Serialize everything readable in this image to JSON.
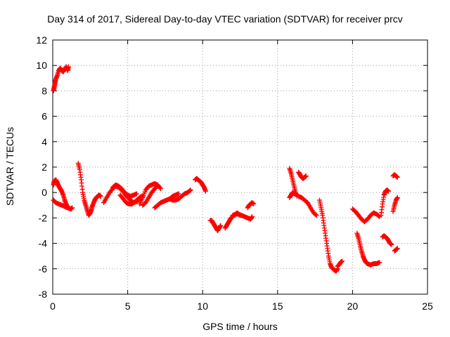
{
  "chart_data": {
    "type": "scatter",
    "title": "Day 314 of 2017, Sidereal Day-to-day VTEC variation (SDTVAR) for receiver prcv",
    "xlabel": "GPS time / hours",
    "ylabel": "SDTVAR / TECUs",
    "xlim": [
      0,
      25
    ],
    "ylim": [
      -8,
      12
    ],
    "xticks": [
      0,
      5,
      10,
      15,
      20,
      25
    ],
    "yticks": [
      -8,
      -6,
      -4,
      -2,
      0,
      2,
      4,
      6,
      8,
      10,
      12
    ],
    "grid": true,
    "marker": "+",
    "color": "#ff0000",
    "series": [
      {
        "name": "prcv",
        "segments": [
          {
            "x": [
              0.05,
              0.1,
              0.15,
              0.2,
              0.3,
              0.4,
              0.5,
              0.6,
              0.7,
              0.8,
              0.9,
              1.0,
              1.05
            ],
            "y": [
              8.0,
              8.3,
              8.6,
              8.9,
              9.2,
              9.6,
              9.8,
              9.6,
              9.5,
              9.7,
              9.9,
              9.6,
              9.9
            ]
          },
          {
            "x": [
              0.05,
              0.1,
              0.2,
              0.3,
              0.4,
              0.5,
              0.6,
              0.7,
              0.8,
              0.9,
              1.0
            ],
            "y": [
              0.6,
              0.9,
              1.0,
              0.8,
              0.5,
              0.3,
              0.1,
              -0.2,
              -0.6,
              -0.9,
              -1.2
            ]
          },
          {
            "x": [
              0.05,
              0.2,
              0.4,
              0.6,
              0.8,
              1.0,
              1.2,
              1.3
            ],
            "y": [
              -0.6,
              -0.8,
              -0.9,
              -1.0,
              -1.1,
              -1.2,
              -1.3,
              -1.2
            ]
          },
          {
            "x": [
              1.7,
              1.8,
              1.9,
              2.0,
              2.1,
              2.2,
              2.3,
              2.4,
              2.5,
              2.6
            ],
            "y": [
              2.3,
              1.8,
              1.0,
              0.0,
              -0.6,
              -1.0,
              -1.4,
              -1.8,
              -1.6,
              -1.3
            ]
          },
          {
            "x": [
              2.6,
              2.7,
              2.8,
              2.9,
              3.0,
              3.1,
              3.2
            ],
            "y": [
              -1.2,
              -0.9,
              -0.6,
              -0.4,
              -0.3,
              -0.2,
              -0.3
            ]
          },
          {
            "x": [
              3.4,
              3.6,
              3.8,
              4.0,
              4.2,
              4.4,
              4.6,
              4.8,
              5.0,
              5.2,
              5.4,
              5.6,
              5.8,
              6.0
            ],
            "y": [
              -0.8,
              -0.4,
              0.0,
              0.3,
              0.5,
              0.4,
              0.2,
              -0.1,
              -0.4,
              -0.6,
              -0.8,
              -0.7,
              -0.5,
              -0.3
            ]
          },
          {
            "x": [
              4.0,
              4.2,
              4.4,
              4.6,
              4.8,
              5.0,
              5.2,
              5.4,
              5.6
            ],
            "y": [
              0.4,
              0.6,
              0.5,
              0.3,
              0.0,
              -0.2,
              -0.3,
              -0.2,
              -0.1
            ]
          },
          {
            "x": [
              4.5,
              4.7,
              4.9,
              5.1,
              5.3,
              5.5,
              5.7,
              5.9
            ],
            "y": [
              -0.2,
              -0.5,
              -0.8,
              -0.9,
              -0.9,
              -0.7,
              -0.5,
              -0.3
            ]
          },
          {
            "x": [
              5.8,
              6.0,
              6.2,
              6.4,
              6.6,
              6.8,
              7.0,
              7.2
            ],
            "y": [
              -0.9,
              -0.4,
              0.2,
              0.5,
              0.6,
              0.7,
              0.6,
              0.3
            ]
          },
          {
            "x": [
              6.0,
              6.2,
              6.4,
              6.6,
              6.8,
              7.0
            ],
            "y": [
              -1.0,
              -0.8,
              -0.4,
              0.0,
              0.3,
              0.5
            ]
          },
          {
            "x": [
              6.8,
              7.0,
              7.2,
              7.4,
              7.6,
              7.8,
              8.0,
              8.2,
              8.4
            ],
            "y": [
              -1.2,
              -1.0,
              -0.8,
              -0.7,
              -0.6,
              -0.5,
              -0.3,
              -0.2,
              -0.1
            ]
          },
          {
            "x": [
              7.8,
              8.0,
              8.2,
              8.4,
              8.6,
              8.8,
              9.0,
              9.2
            ],
            "y": [
              -0.5,
              -0.6,
              -0.6,
              -0.5,
              -0.3,
              -0.1,
              0.0,
              0.2
            ]
          },
          {
            "x": [
              9.5,
              9.6,
              9.7,
              9.8,
              9.9,
              10.0,
              10.1,
              10.2
            ],
            "y": [
              1.0,
              1.1,
              1.0,
              0.9,
              0.8,
              0.6,
              0.4,
              0.1
            ]
          },
          {
            "x": [
              10.5,
              10.6,
              10.7,
              10.8,
              10.9,
              11.0,
              11.1,
              11.2
            ],
            "y": [
              -2.2,
              -2.2,
              -2.4,
              -2.6,
              -2.8,
              -3.0,
              -2.8,
              -2.6
            ]
          },
          {
            "x": [
              11.5,
              11.6,
              11.7,
              11.8,
              11.9,
              12.0,
              12.1,
              12.2,
              12.3,
              12.4,
              12.5
            ],
            "y": [
              -2.8,
              -2.6,
              -2.4,
              -2.2,
              -2.0,
              -1.9,
              -1.8,
              -1.7,
              -1.6,
              -1.7,
              -1.8
            ]
          },
          {
            "x": [
              12.0,
              12.2,
              12.4,
              12.6,
              12.8,
              13.0,
              13.2,
              13.3
            ],
            "y": [
              -1.8,
              -1.7,
              -1.7,
              -1.8,
              -1.9,
              -2.0,
              -2.1,
              -1.9
            ]
          },
          {
            "x": [
              13.0,
              13.1,
              13.2,
              13.3,
              13.4
            ],
            "y": [
              -1.2,
              -1.0,
              -0.9,
              -0.8,
              -0.9
            ]
          },
          {
            "x": [
              15.8,
              15.9,
              16.0,
              16.1,
              16.2,
              16.3
            ],
            "y": [
              1.9,
              1.5,
              1.0,
              0.5,
              0.0,
              -0.3
            ]
          },
          {
            "x": [
              15.8,
              15.9,
              16.0,
              16.1
            ],
            "y": [
              -0.4,
              -0.2,
              0.0,
              -0.1
            ]
          },
          {
            "x": [
              16.4,
              16.5,
              16.6,
              16.7,
              16.8,
              16.9
            ],
            "y": [
              1.6,
              1.4,
              1.2,
              1.1,
              1.2,
              1.3
            ]
          },
          {
            "x": [
              16.4,
              16.6,
              16.8,
              17.0,
              17.2,
              17.4,
              17.6
            ],
            "y": [
              -0.3,
              -0.4,
              -0.6,
              -0.8,
              -1.2,
              -1.6,
              -1.8
            ]
          },
          {
            "x": [
              17.8,
              17.9,
              18.0,
              18.1,
              18.2,
              18.3,
              18.4,
              18.5,
              18.6,
              18.7,
              18.8,
              18.9,
              19.0
            ],
            "y": [
              -0.6,
              -1.2,
              -1.8,
              -2.6,
              -3.4,
              -4.2,
              -5.0,
              -5.6,
              -5.9,
              -6.0,
              -6.1,
              -6.2,
              -6.0
            ]
          },
          {
            "x": [
              19.0,
              19.1,
              19.2,
              19.3
            ],
            "y": [
              -5.8,
              -5.7,
              -5.5,
              -5.4
            ]
          },
          {
            "x": [
              20.0,
              20.2,
              20.4,
              20.6,
              20.8,
              21.0,
              21.2,
              21.4,
              21.6,
              21.8
            ],
            "y": [
              -1.3,
              -1.5,
              -1.8,
              -2.1,
              -2.3,
              -2.1,
              -1.8,
              -1.6,
              -1.7,
              -1.9
            ]
          },
          {
            "x": [
              20.3,
              20.4,
              20.5,
              20.6,
              20.7,
              20.8,
              20.9,
              21.0,
              21.2,
              21.4,
              21.6,
              21.8
            ],
            "y": [
              -3.2,
              -3.6,
              -4.1,
              -4.6,
              -5.0,
              -5.3,
              -5.5,
              -5.6,
              -5.7,
              -5.6,
              -5.6,
              -5.5
            ]
          },
          {
            "x": [
              21.9,
              22.0,
              22.1,
              22.2,
              22.3,
              22.4
            ],
            "y": [
              -1.8,
              -0.9,
              -0.2,
              0.1,
              0.2,
              0.1
            ]
          },
          {
            "x": [
              22.0,
              22.1,
              22.2,
              22.3,
              22.4,
              22.5,
              22.6
            ],
            "y": [
              -3.5,
              -3.4,
              -3.5,
              -3.6,
              -3.8,
              -4.0,
              -4.1
            ]
          },
          {
            "x": [
              22.7,
              22.8,
              22.9,
              23.0
            ],
            "y": [
              1.3,
              1.4,
              1.3,
              1.2
            ]
          },
          {
            "x": [
              22.7,
              22.8,
              22.9,
              23.0
            ],
            "y": [
              -1.5,
              -1.0,
              -0.6,
              -0.4
            ]
          },
          {
            "x": [
              22.8,
              22.9,
              23.0
            ],
            "y": [
              -4.6,
              -4.5,
              -4.4
            ]
          }
        ]
      }
    ]
  }
}
